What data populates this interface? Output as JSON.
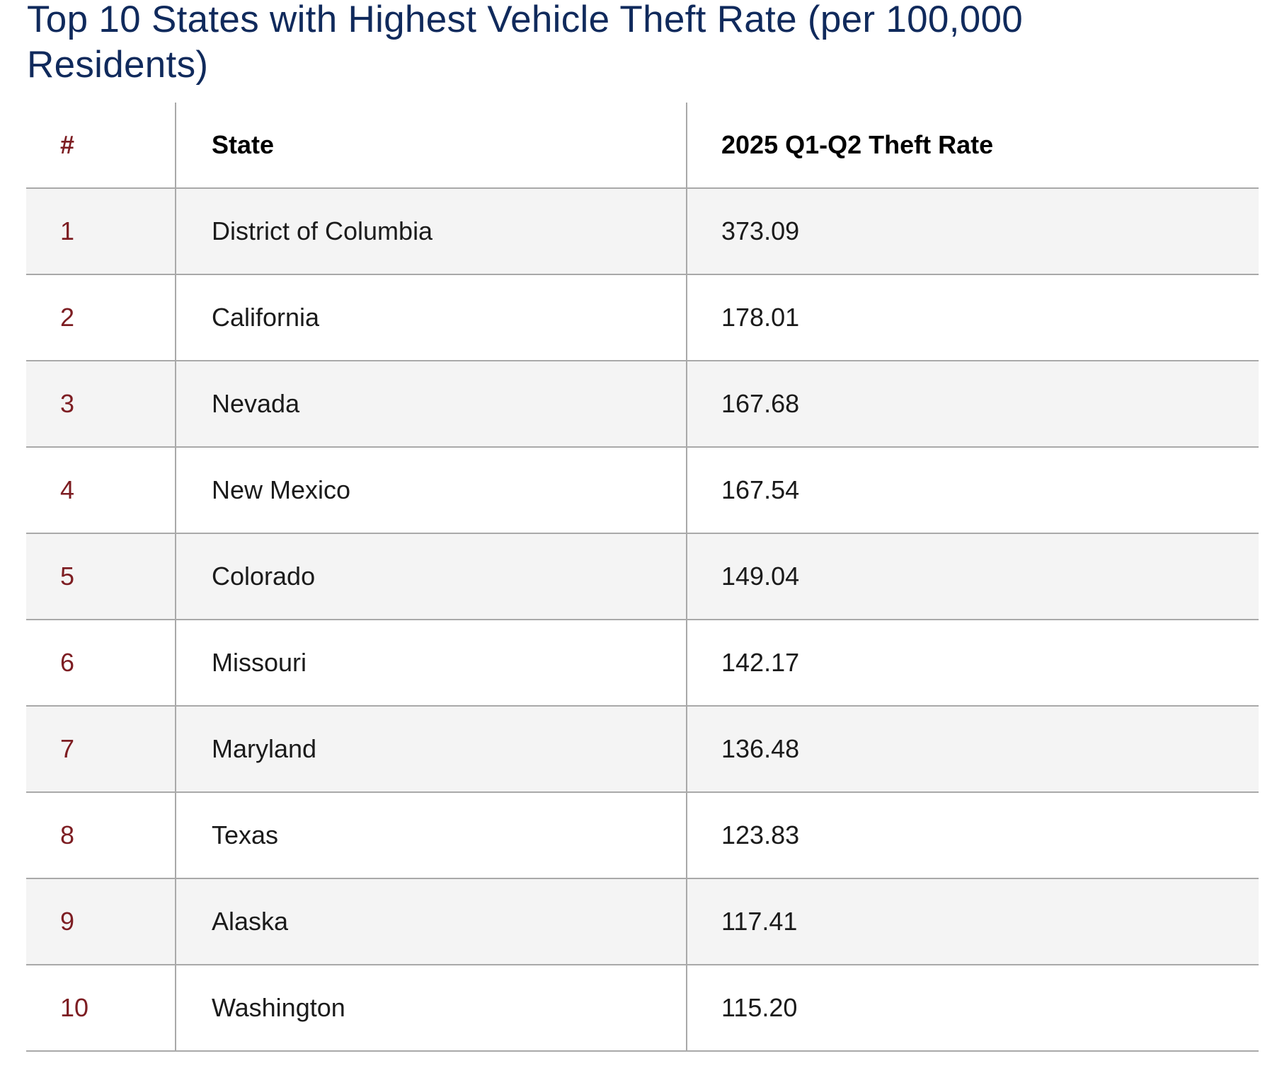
{
  "title": "Top 10 States with Highest Vehicle Theft Rate (per 100,000 Residents)",
  "table": {
    "headers": {
      "rank": "#",
      "state": "State",
      "rate": "2025 Q1-Q2 Theft Rate"
    },
    "rows": [
      {
        "rank": "1",
        "state": "District of Columbia",
        "rate": "373.09"
      },
      {
        "rank": "2",
        "state": "California",
        "rate": "178.01"
      },
      {
        "rank": "3",
        "state": "Nevada",
        "rate": "167.68"
      },
      {
        "rank": "4",
        "state": "New Mexico",
        "rate": "167.54"
      },
      {
        "rank": "5",
        "state": "Colorado",
        "rate": "149.04"
      },
      {
        "rank": "6",
        "state": "Missouri",
        "rate": "142.17"
      },
      {
        "rank": "7",
        "state": "Maryland",
        "rate": "136.48"
      },
      {
        "rank": "8",
        "state": "Texas",
        "rate": "123.83"
      },
      {
        "rank": "9",
        "state": "Alaska",
        "rate": "117.41"
      },
      {
        "rank": "10",
        "state": "Washington",
        "rate": "115.20"
      }
    ]
  },
  "colors": {
    "title": "#102a5c",
    "rank": "#7d1d22",
    "shaded_row": "#f4f4f4",
    "border": "#a9a9a9"
  }
}
